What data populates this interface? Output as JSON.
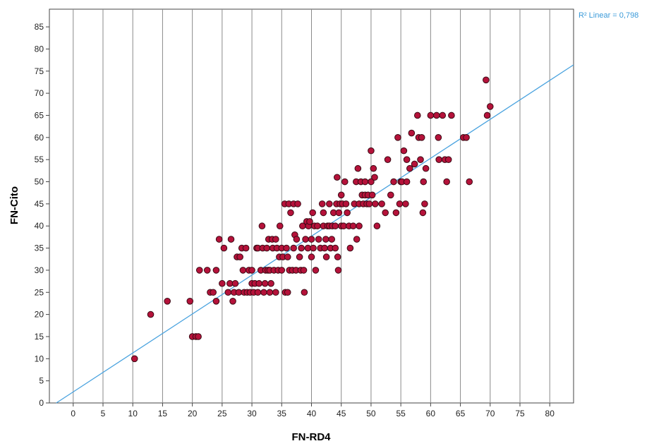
{
  "chart_data": {
    "type": "scatter",
    "title": "",
    "xlabel": "FN-RD4",
    "ylabel": "FN-Cito",
    "xlim": [
      -4,
      84
    ],
    "ylim": [
      0,
      89
    ],
    "x_ticks": [
      0,
      5,
      10,
      15,
      20,
      25,
      30,
      35,
      40,
      45,
      50,
      55,
      60,
      65,
      70,
      75,
      80
    ],
    "y_ticks": [
      0,
      5,
      10,
      15,
      20,
      25,
      30,
      35,
      40,
      45,
      50,
      55,
      60,
      65,
      70,
      75,
      80,
      85
    ],
    "grid": "vertical",
    "colors": {
      "point_fill": "#b5123a",
      "point_edge": "#3a0a14",
      "fit_line": "#4aa3df",
      "annotation": "#3a9ad9"
    },
    "fit_line": {
      "label": "R² Linear = 0,798",
      "intercept": 2.5,
      "slope": 0.88
    },
    "points": [
      [
        10.3,
        10
      ],
      [
        13,
        20
      ],
      [
        15.8,
        23
      ],
      [
        19.6,
        23
      ],
      [
        20,
        15
      ],
      [
        20.6,
        15
      ],
      [
        21,
        15
      ],
      [
        21.2,
        30
      ],
      [
        22.5,
        30
      ],
      [
        23,
        25
      ],
      [
        23.5,
        25
      ],
      [
        24,
        23
      ],
      [
        24,
        30
      ],
      [
        24.5,
        37
      ],
      [
        25,
        27
      ],
      [
        25.3,
        35
      ],
      [
        26,
        25
      ],
      [
        26.3,
        27
      ],
      [
        26.5,
        37
      ],
      [
        26.8,
        23
      ],
      [
        27,
        25
      ],
      [
        27.2,
        27
      ],
      [
        27.5,
        33
      ],
      [
        27.8,
        25
      ],
      [
        28,
        33
      ],
      [
        28.3,
        35
      ],
      [
        28.5,
        30
      ],
      [
        28.7,
        25
      ],
      [
        29,
        35
      ],
      [
        29.2,
        25
      ],
      [
        29.5,
        30
      ],
      [
        29.7,
        25
      ],
      [
        30,
        30
      ],
      [
        30,
        27
      ],
      [
        30.3,
        25
      ],
      [
        30.5,
        27
      ],
      [
        30.8,
        35
      ],
      [
        31,
        25
      ],
      [
        31,
        35
      ],
      [
        31.2,
        27
      ],
      [
        31.5,
        30
      ],
      [
        31.7,
        40
      ],
      [
        31.8,
        35
      ],
      [
        32,
        25
      ],
      [
        32.2,
        27
      ],
      [
        32.3,
        30
      ],
      [
        32.5,
        35
      ],
      [
        32.7,
        30
      ],
      [
        32.8,
        37
      ],
      [
        33,
        25
      ],
      [
        33,
        30
      ],
      [
        33.2,
        27
      ],
      [
        33.4,
        37
      ],
      [
        33.5,
        35
      ],
      [
        33.7,
        30
      ],
      [
        34,
        37
      ],
      [
        34,
        25
      ],
      [
        34.2,
        35
      ],
      [
        34.4,
        30
      ],
      [
        34.6,
        33
      ],
      [
        34.7,
        40
      ],
      [
        35,
        35
      ],
      [
        35,
        30
      ],
      [
        35.2,
        33
      ],
      [
        35.5,
        45
      ],
      [
        35.6,
        25
      ],
      [
        35.8,
        35
      ],
      [
        36,
        25
      ],
      [
        36,
        33
      ],
      [
        36.2,
        45
      ],
      [
        36.3,
        30
      ],
      [
        36.5,
        43
      ],
      [
        36.8,
        30
      ],
      [
        37,
        35
      ],
      [
        37,
        45
      ],
      [
        37.2,
        38
      ],
      [
        37.4,
        30
      ],
      [
        37.5,
        37
      ],
      [
        37.7,
        45
      ],
      [
        38,
        33
      ],
      [
        38.2,
        30
      ],
      [
        38.3,
        35
      ],
      [
        38.5,
        40
      ],
      [
        38.7,
        30
      ],
      [
        38.8,
        25
      ],
      [
        39,
        37
      ],
      [
        39.2,
        41
      ],
      [
        39.4,
        35
      ],
      [
        39.5,
        40
      ],
      [
        39.7,
        41
      ],
      [
        40,
        33
      ],
      [
        40,
        37
      ],
      [
        40.2,
        43
      ],
      [
        40.3,
        35
      ],
      [
        40.5,
        40
      ],
      [
        40.7,
        30
      ],
      [
        41,
        40
      ],
      [
        41.2,
        37
      ],
      [
        41.5,
        35
      ],
      [
        41.8,
        45
      ],
      [
        42,
        40
      ],
      [
        42,
        43
      ],
      [
        42.2,
        35
      ],
      [
        42.4,
        37
      ],
      [
        42.5,
        33
      ],
      [
        42.7,
        40
      ],
      [
        43,
        45
      ],
      [
        43,
        40
      ],
      [
        43.2,
        35
      ],
      [
        43.4,
        37
      ],
      [
        43.5,
        40
      ],
      [
        43.7,
        43
      ],
      [
        44,
        35
      ],
      [
        44,
        40
      ],
      [
        44.2,
        45
      ],
      [
        44.3,
        51
      ],
      [
        44.4,
        33
      ],
      [
        44.5,
        30
      ],
      [
        44.6,
        43
      ],
      [
        44.8,
        45
      ],
      [
        45,
        40
      ],
      [
        45,
        47
      ],
      [
        45.2,
        45
      ],
      [
        45.4,
        40
      ],
      [
        45.6,
        50
      ],
      [
        45.8,
        45
      ],
      [
        46,
        43
      ],
      [
        46.3,
        40
      ],
      [
        46.5,
        35
      ],
      [
        47,
        40
      ],
      [
        47.2,
        45
      ],
      [
        47.5,
        50
      ],
      [
        47.6,
        37
      ],
      [
        47.8,
        53
      ],
      [
        48,
        40
      ],
      [
        48,
        45
      ],
      [
        48.3,
        50
      ],
      [
        48.5,
        47
      ],
      [
        48.7,
        45
      ],
      [
        49,
        47
      ],
      [
        49,
        50
      ],
      [
        49.3,
        45
      ],
      [
        49.5,
        47
      ],
      [
        49.7,
        45
      ],
      [
        50,
        57
      ],
      [
        50,
        50
      ],
      [
        50.2,
        47
      ],
      [
        50.4,
        53
      ],
      [
        50.6,
        51
      ],
      [
        50.7,
        45
      ],
      [
        51,
        40
      ],
      [
        51.8,
        45
      ],
      [
        52.4,
        43
      ],
      [
        52.8,
        55
      ],
      [
        53.3,
        47
      ],
      [
        53.8,
        50
      ],
      [
        54.2,
        43
      ],
      [
        54.5,
        60
      ],
      [
        54.8,
        45
      ],
      [
        55,
        50
      ],
      [
        55.2,
        50
      ],
      [
        55.5,
        57
      ],
      [
        55.8,
        45
      ],
      [
        56,
        55
      ],
      [
        56,
        50
      ],
      [
        56.5,
        53
      ],
      [
        56.8,
        61
      ],
      [
        57.3,
        54
      ],
      [
        57.8,
        65
      ],
      [
        58,
        60
      ],
      [
        58.3,
        55
      ],
      [
        58.5,
        60
      ],
      [
        58.7,
        43
      ],
      [
        58.8,
        50
      ],
      [
        59,
        45
      ],
      [
        59.2,
        53
      ],
      [
        60,
        65
      ],
      [
        61,
        65
      ],
      [
        61.3,
        60
      ],
      [
        61.4,
        55
      ],
      [
        62,
        65
      ],
      [
        62.4,
        55
      ],
      [
        62.7,
        50
      ],
      [
        63,
        55
      ],
      [
        63.5,
        65
      ],
      [
        65.5,
        60
      ],
      [
        66,
        60
      ],
      [
        66.5,
        50
      ],
      [
        69.3,
        73
      ],
      [
        69.5,
        65
      ],
      [
        70,
        67
      ]
    ]
  }
}
